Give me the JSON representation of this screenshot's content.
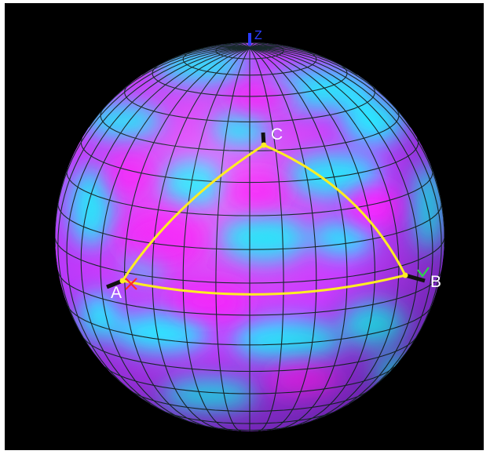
{
  "vertices": {
    "A": "A",
    "B": "B",
    "C": "C"
  },
  "axes": {
    "x": "X",
    "y": "Y",
    "z": "Z"
  },
  "colors": {
    "background": "#000000",
    "sphere_magenta": "#ff22ff",
    "sphere_cyan": "#22f0ff",
    "grid": "#1a2e30",
    "triangle": "#ffee22",
    "vertex_marker": "#111111",
    "x_axis": "#ff2a2a",
    "y_axis": "#2ad24a",
    "z_axis": "#2a3cff"
  }
}
